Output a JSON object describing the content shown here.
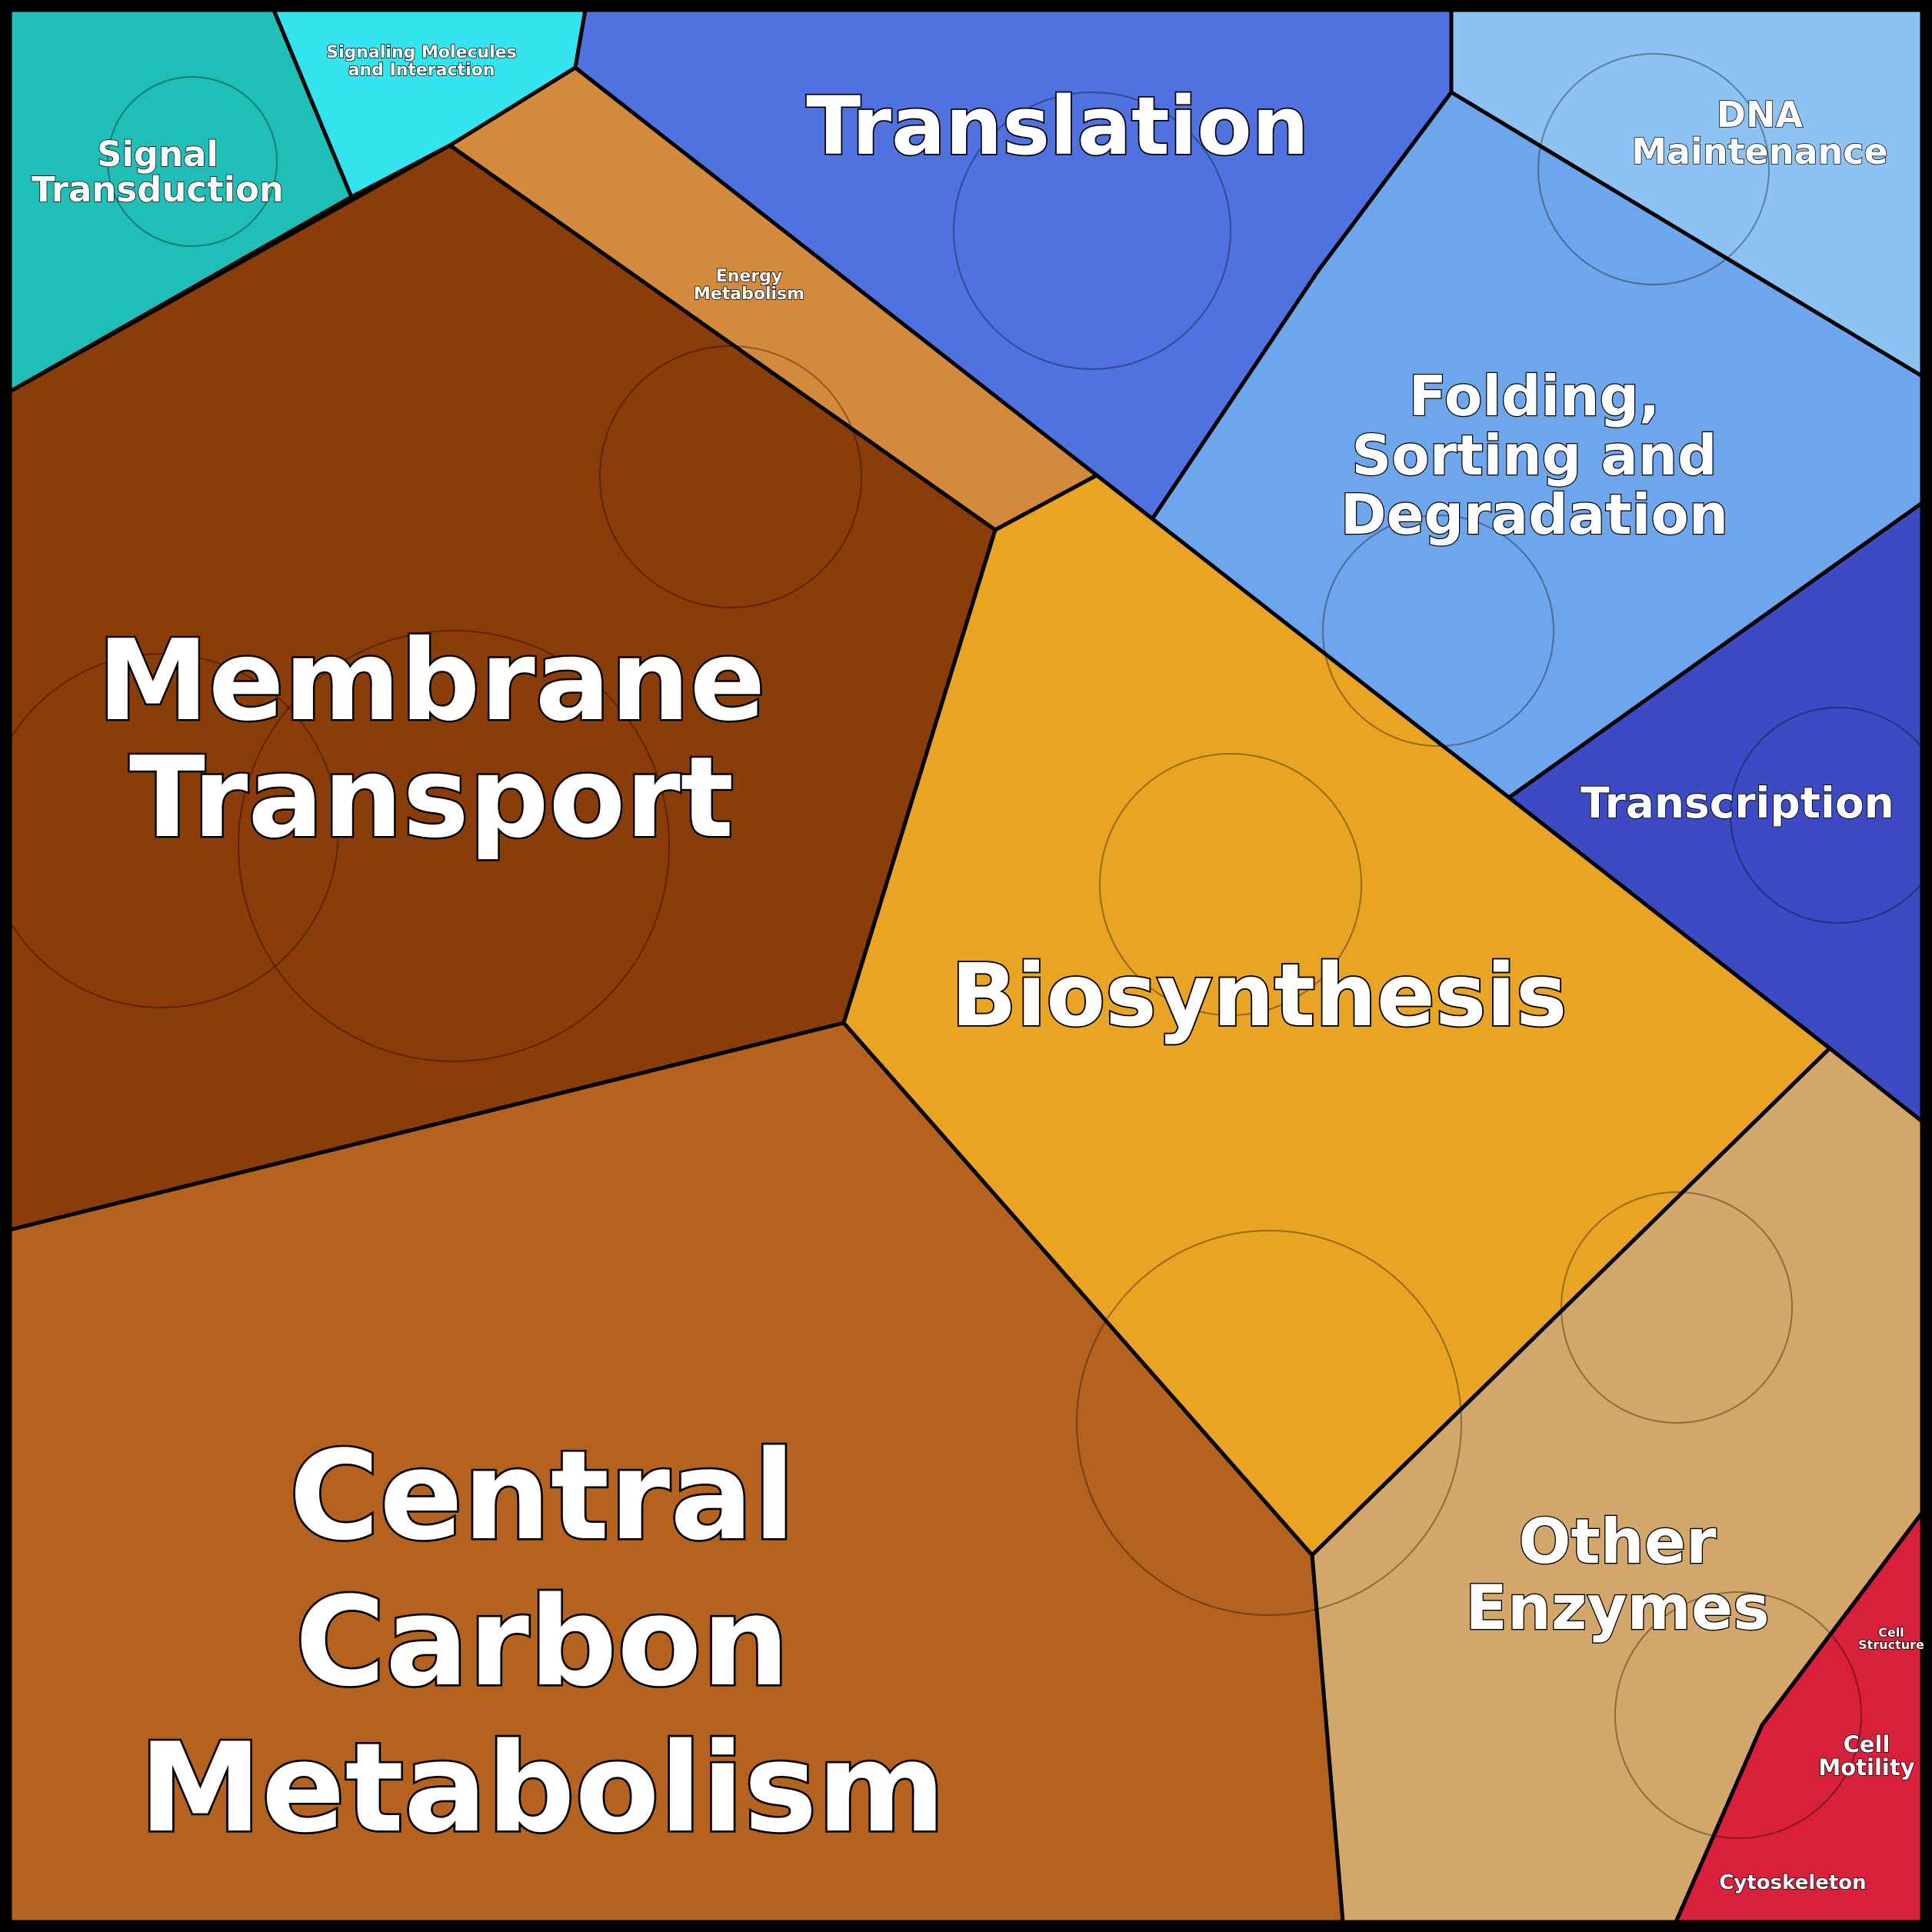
{
  "regions": [
    {
      "id": "signal",
      "lines": [
        "Signal",
        "Transduction"
      ]
    },
    {
      "id": "signaling",
      "lines": [
        "Signaling Molecules",
        "and Interaction"
      ]
    },
    {
      "id": "translation",
      "lines": [
        "Translation"
      ]
    },
    {
      "id": "dna",
      "lines": [
        "DNA",
        "Maintenance"
      ]
    },
    {
      "id": "folding",
      "lines": [
        "Folding,",
        "Sorting and",
        "Degradation"
      ]
    },
    {
      "id": "energy",
      "lines": [
        "Energy",
        "Metabolism"
      ]
    },
    {
      "id": "membrane",
      "lines": [
        "Membrane",
        "Transport"
      ]
    },
    {
      "id": "biosynthesis",
      "lines": [
        "Biosynthesis"
      ]
    },
    {
      "id": "transcription",
      "lines": [
        "Transcription"
      ]
    },
    {
      "id": "other",
      "lines": [
        "Other",
        "Enzymes"
      ]
    },
    {
      "id": "central",
      "lines": [
        "Central",
        "Carbon",
        "Metabolism"
      ]
    },
    {
      "id": "cellstructure",
      "lines": [
        "Cell",
        "Structure"
      ]
    },
    {
      "id": "motility",
      "lines": [
        "Cell",
        "Motility"
      ]
    },
    {
      "id": "cytoskeleton",
      "lines": [
        "Cytoskeleton"
      ]
    }
  ]
}
